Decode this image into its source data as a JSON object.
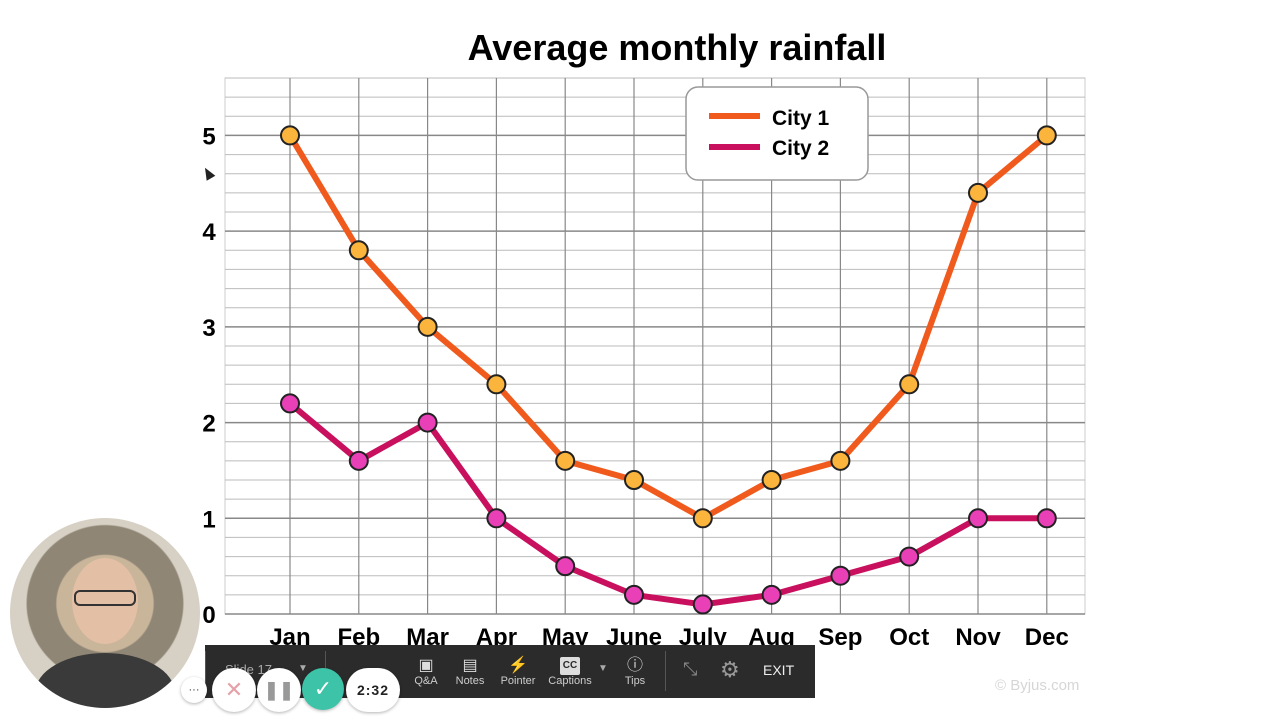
{
  "chart_data": {
    "type": "line",
    "title": "Average monthly rainfall",
    "categories": [
      "Jan",
      "Feb",
      "Mar",
      "Apr",
      "May",
      "June",
      "July",
      "Aug",
      "Sep",
      "Oct",
      "Nov",
      "Dec"
    ],
    "series": [
      {
        "name": "City 1",
        "color": "#f05a1c",
        "marker_color": "#fbb43c",
        "values": [
          5.0,
          3.8,
          3.0,
          2.4,
          1.6,
          1.4,
          1.0,
          1.4,
          1.6,
          2.4,
          4.4,
          5.0
        ]
      },
      {
        "name": "City 2",
        "color": "#c8105e",
        "marker_color": "#e940b8",
        "values": [
          2.2,
          1.6,
          2.0,
          1.0,
          0.5,
          0.2,
          0.1,
          0.2,
          0.4,
          0.6,
          1.0,
          1.0
        ]
      }
    ],
    "yticks": [
      0,
      1,
      2,
      3,
      4,
      5
    ],
    "ylim": [
      0,
      5.6
    ],
    "minor_grid_step": 0.2,
    "grid": true,
    "legend_position": "top-center",
    "xlabel": "",
    "ylabel": ""
  },
  "player": {
    "slide_label": "Slide 17",
    "items": [
      {
        "label": "Q&A",
        "icon": "chat-icon"
      },
      {
        "label": "Notes",
        "icon": "notes-icon"
      },
      {
        "label": "Pointer",
        "icon": "pointer-icon"
      },
      {
        "label": "Captions",
        "icon": "cc-icon"
      },
      {
        "label": "Tips",
        "icon": "info-icon"
      }
    ],
    "exit_label": "EXIT",
    "timer": "2:32",
    "more_label": "···",
    "accent": "#3cc3a8"
  },
  "watermark": "© Byjus.com"
}
